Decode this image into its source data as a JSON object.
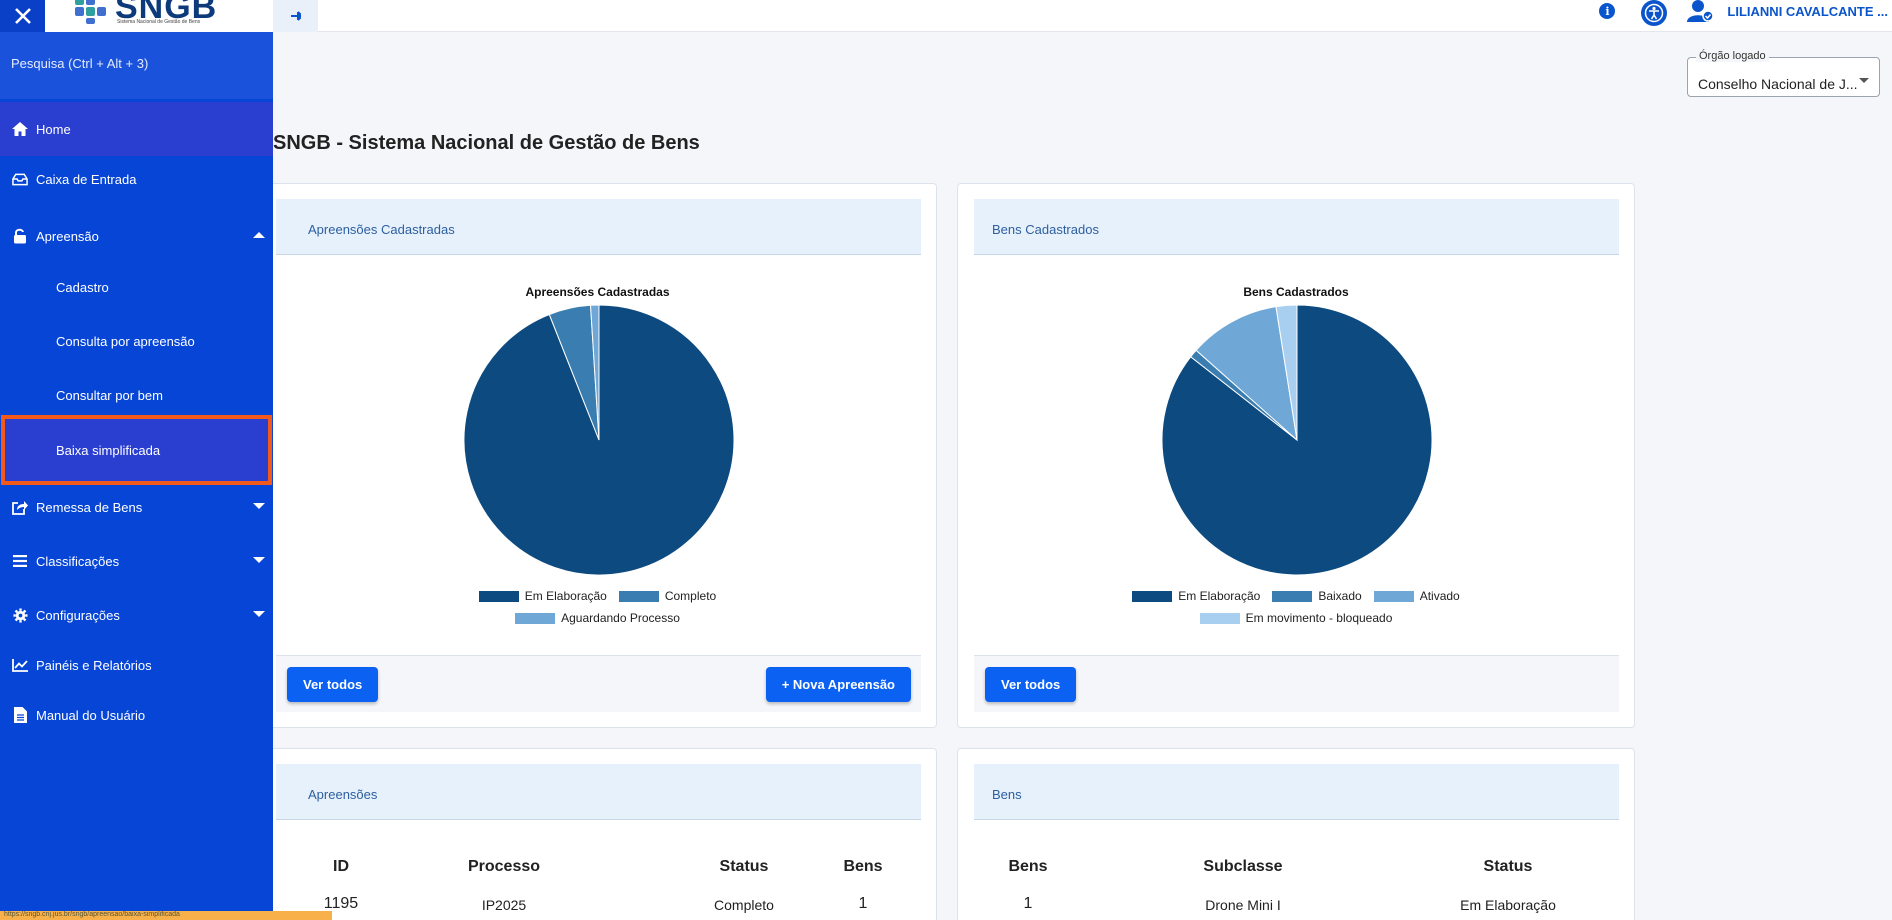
{
  "app": {
    "logo_text": "SNGB",
    "logo_subtitle": "Sistema Nacional de Gestão de Bens",
    "user_name": "LILIANNI CAVALCANTE ..."
  },
  "sidebar": {
    "search_placeholder": "Pesquisa (Ctrl + Alt + 3)",
    "items": {
      "home": "Home",
      "inbox": "Caixa de Entrada",
      "apreensao": "Apreensão",
      "cadastro": "Cadastro",
      "consulta_apreensao": "Consulta por apreensão",
      "consultar_bem": "Consultar por bem",
      "baixa": "Baixa simplificada",
      "remessa": "Remessa de Bens",
      "classificacoes": "Classificações",
      "configuracoes": "Configurações",
      "paineis": "Painéis e Relatórios",
      "manual": "Manual do Usuário"
    }
  },
  "status_url": "https://sngb.cnj.jus.br/sngb/apreensao/baixa-simplificada",
  "orgao": {
    "label": "Órgão logado",
    "value": "Conselho Nacional de J..."
  },
  "page_title": "SNGB - Sistema Nacional de Gestão de Bens",
  "cards": {
    "apreensoes_chart": {
      "header": "Apreensões Cadastradas",
      "btn_all": "Ver todos",
      "btn_new": "+ Nova Apreensão"
    },
    "bens_chart": {
      "header": "Bens Cadastrados",
      "btn_all": "Ver todos"
    },
    "apreensoes_table": {
      "header": "Apreensões",
      "columns": [
        "ID",
        "Processo",
        "Status",
        "Bens"
      ],
      "rows": [
        [
          "1195",
          "IP2025",
          "Completo",
          "1"
        ]
      ]
    },
    "bens_table": {
      "header": "Bens",
      "columns": [
        "Bens",
        "Subclasse",
        "Status"
      ],
      "rows": [
        [
          "1",
          "Drone Mini I",
          "Em Elaboração"
        ]
      ]
    }
  },
  "colors": {
    "sidebar": "#0645d6",
    "accent": "#0b61f2",
    "highlight": "#f25a1c",
    "pie_dark": "#0c4a7f",
    "pie_mid": "#3a7db0",
    "pie_light": "#6fa8d6",
    "pie_lighter": "#a9cff0"
  },
  "chart_data": [
    {
      "type": "pie",
      "title": "Apreensões Cadastradas",
      "labels": [
        "Em Elaboração",
        "Completo",
        "Aguardando Processo"
      ],
      "values": [
        94,
        5,
        1
      ],
      "colors": [
        "#0c4a7f",
        "#3a7db0",
        "#6fa8d6"
      ]
    },
    {
      "type": "pie",
      "title": "Bens Cadastrados",
      "labels": [
        "Em Elaboração",
        "Baixado",
        "Ativado",
        "Em movimento - bloqueado"
      ],
      "values": [
        86,
        1,
        11,
        2.5
      ],
      "colors": [
        "#0c4a7f",
        "#3a7db0",
        "#6fa8d6",
        "#a9cff0"
      ]
    }
  ]
}
